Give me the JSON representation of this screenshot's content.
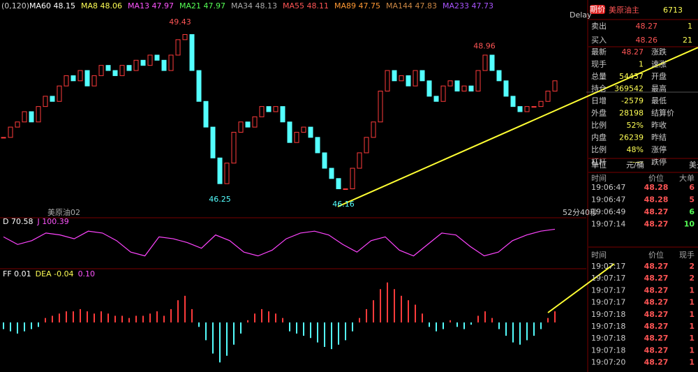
{
  "header": {
    "params": "(0,120)",
    "ma": [
      {
        "label": "MA60 48.15",
        "color": "#ffffff"
      },
      {
        "label": "MA8 48.06",
        "color": "#ffff55"
      },
      {
        "label": "MA13 47.97",
        "color": "#ff55ff"
      },
      {
        "label": "MA21 47.97",
        "color": "#55ff55"
      },
      {
        "label": "MA34 48.13",
        "color": "#aaaaaa"
      },
      {
        "label": "MA55 48.11",
        "color": "#ff5555"
      },
      {
        "label": "MA89 47.75",
        "color": "#ff9933"
      },
      {
        "label": "MA144 47.83",
        "color": "#cc8844"
      },
      {
        "label": "MA233 47.73",
        "color": "#aa55ff"
      }
    ],
    "delay": "Delay"
  },
  "chart_data": {
    "type": "candlestick",
    "closes": [
      47.3,
      47.5,
      47.6,
      47.8,
      47.6,
      47.9,
      48.1,
      48.0,
      48.3,
      48.5,
      48.4,
      48.6,
      48.3,
      48.5,
      48.7,
      48.6,
      48.5,
      48.7,
      48.6,
      48.8,
      48.7,
      48.9,
      48.8,
      48.6,
      48.9,
      49.2,
      49.3,
      48.6,
      48.0,
      47.5,
      46.9,
      46.4,
      46.8,
      47.4,
      47.6,
      47.5,
      47.7,
      47.9,
      47.8,
      47.9,
      47.6,
      47.2,
      47.4,
      47.5,
      47.3,
      47.0,
      46.7,
      46.5,
      46.3,
      46.3,
      46.7,
      47.0,
      47.3,
      47.6,
      48.2,
      48.6,
      48.4,
      48.5,
      48.3,
      48.6,
      48.4,
      48.1,
      48.0,
      48.3,
      48.4,
      48.2,
      48.3,
      48.2,
      48.6,
      48.9,
      48.6,
      48.4,
      48.1,
      47.9,
      47.8,
      47.9,
      47.9,
      48.0,
      48.2,
      48.4
    ],
    "ylim": [
      45.9,
      49.7
    ],
    "peak_labels": [
      49.43,
      46.25,
      46.16,
      48.96
    ],
    "contract": "美原油02",
    "countdown": "52分40秒",
    "up_color": "#ff3b3b",
    "down_color": "#54ffff"
  },
  "kdj": {
    "labels": [
      {
        "label": "D 70.58",
        "color": "#ffffff"
      },
      {
        "label": "J 100.39",
        "color": "#ff55ff"
      }
    ],
    "j": [
      80,
      60,
      70,
      90,
      85,
      75,
      95,
      90,
      70,
      40,
      30,
      80,
      75,
      65,
      50,
      85,
      70,
      40,
      30,
      45,
      75,
      90,
      95,
      85,
      60,
      40,
      70,
      80,
      45,
      30,
      60,
      90,
      85,
      55,
      30,
      40,
      70,
      85,
      95,
      100
    ],
    "ylim": [
      0,
      110
    ],
    "color": "#ff44ff"
  },
  "macd": {
    "labels": [
      {
        "label": "FF 0.01",
        "color": "#ffffff"
      },
      {
        "label": "DEA -0.04",
        "color": "#ffff55"
      },
      {
        "label": "0.10",
        "color": "#ff55ff"
      }
    ],
    "histogram": [
      -0.03,
      -0.04,
      -0.05,
      -0.04,
      -0.03,
      -0.02,
      0.02,
      0.03,
      0.04,
      0.05,
      0.05,
      0.06,
      0.05,
      0.04,
      0.05,
      0.04,
      0.03,
      0.03,
      0.02,
      0.03,
      0.03,
      0.04,
      0.05,
      0.03,
      0.06,
      0.1,
      0.12,
      0.06,
      -0.02,
      -0.08,
      -0.14,
      -0.18,
      -0.15,
      -0.1,
      -0.05,
      0.01,
      0.04,
      0.06,
      0.05,
      0.04,
      0.02,
      -0.04,
      -0.05,
      -0.06,
      -0.07,
      -0.09,
      -0.11,
      -0.12,
      -0.1,
      -0.08,
      -0.04,
      0.02,
      0.06,
      0.1,
      0.15,
      0.18,
      0.15,
      0.12,
      0.1,
      0.08,
      0.04,
      -0.02,
      -0.04,
      -0.03,
      0.01,
      -0.02,
      -0.03,
      -0.01,
      0.03,
      0.05,
      0.02,
      -0.03,
      -0.06,
      -0.09,
      -0.1,
      -0.08,
      -0.06,
      -0.03,
      0.02,
      0.05
    ],
    "ylim": [
      -0.22,
      0.22
    ]
  },
  "quote": {
    "badge": "期价",
    "name": "美原油主",
    "code": "6713",
    "sell": {
      "label": "卖出",
      "price": "48.27",
      "size": "1"
    },
    "buy": {
      "label": "买入",
      "price": "48.26",
      "size": "21"
    },
    "rows": [
      [
        "最新",
        "48.27",
        "涨跌"
      ],
      [
        "现手",
        "1",
        "速涨"
      ],
      [
        "总量",
        "54437",
        "开盘"
      ],
      [
        "持仓",
        "369542",
        "最高"
      ],
      [
        "日增",
        "-2579",
        "最低"
      ],
      [
        "外盘",
        "28198",
        "结算价"
      ],
      [
        "比例",
        "52%",
        "昨收"
      ],
      [
        "内盘",
        "26239",
        "昨结"
      ],
      [
        "比例",
        "48%",
        "涨停"
      ],
      [
        "杠杆",
        "-----",
        "跌停"
      ]
    ],
    "unit": [
      "单位",
      "元/桶",
      "美元"
    ],
    "big_trades": {
      "header": [
        "时间",
        "价位",
        "大单"
      ],
      "rows": [
        [
          "19:06:47",
          "48.28",
          "6"
        ],
        [
          "19:06:47",
          "48.28",
          "5"
        ],
        [
          "19:06:49",
          "48.27",
          "6"
        ],
        [
          "19:07:14",
          "48.27",
          "10"
        ]
      ]
    },
    "ticks": {
      "header": [
        "时间",
        "价位",
        "现手"
      ],
      "rows": [
        [
          "19:07:17",
          "48.27",
          "2"
        ],
        [
          "19:07:17",
          "48.27",
          "2"
        ],
        [
          "19:07:17",
          "48.27",
          "1"
        ],
        [
          "19:07:17",
          "48.27",
          "1"
        ],
        [
          "19:07:18",
          "48.27",
          "1"
        ],
        [
          "19:07:18",
          "48.27",
          "1"
        ],
        [
          "19:07:18",
          "48.27",
          "1"
        ],
        [
          "19:07:18",
          "48.27",
          "1"
        ],
        [
          "19:07:20",
          "48.27",
          "1"
        ]
      ]
    }
  }
}
